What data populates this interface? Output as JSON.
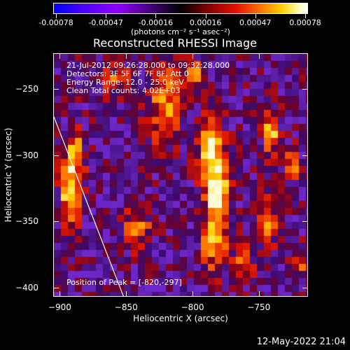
{
  "colorbar": {
    "ticks": [
      "-0.00078",
      "-0.00047",
      "-0.00016",
      "0.00016",
      "0.00047",
      "0.00078"
    ],
    "units": "(photons cm⁻² s⁻¹ asec⁻²)"
  },
  "title": "Reconstructed RHESSI Image",
  "info": {
    "line1": "21-Jul-2012 09:26:28.000 to 09:32:28.000",
    "line2": "Detectors: 3F 5F 6F 7F 8F, Att 0",
    "line3": "Energy Range: 12.0 - 25.0 keV",
    "line4": "Clean     Total counts: 4.02E+03",
    "peak": "Position of Peak = [-820,-297]"
  },
  "axes": {
    "xlabel": "Heliocentric X (arcsec)",
    "ylabel": "Heliocentric Y (arcsec)",
    "xticks": [
      "-900",
      "-850",
      "-800",
      "-750"
    ],
    "yticks": [
      "-250",
      "-300",
      "-350",
      "-400"
    ],
    "xrange": [
      -905,
      -713
    ],
    "yrange": [
      -223,
      -407
    ]
  },
  "timestamp": "12-May-2022 21:04"
}
